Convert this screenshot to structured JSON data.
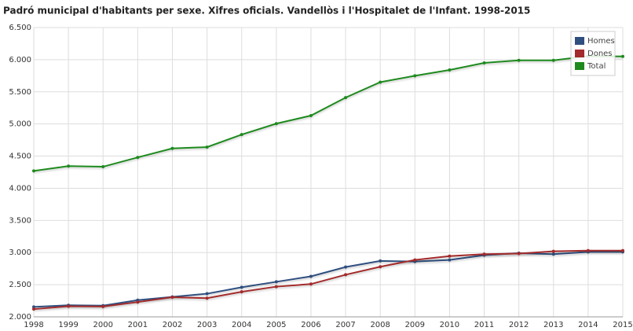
{
  "chart_data": {
    "type": "line",
    "title": "Padró municipal d'habitants per sexe. Xifres oficials. Vandellòs i l'Hospitalet de l'Infant. 1998-2015",
    "x": [
      1998,
      1999,
      2000,
      2001,
      2002,
      2003,
      2004,
      2005,
      2006,
      2007,
      2008,
      2009,
      2010,
      2011,
      2012,
      2013,
      2014,
      2015
    ],
    "xlim": [
      1998,
      2015
    ],
    "xticks": [
      1998,
      1999,
      2000,
      2001,
      2002,
      2003,
      2004,
      2005,
      2006,
      2007,
      2008,
      2009,
      2010,
      2011,
      2012,
      2013,
      2014,
      2015
    ],
    "ylim": [
      2000,
      6500
    ],
    "yticks": [
      {
        "value": 2000,
        "label": "2.000"
      },
      {
        "value": 2500,
        "label": "2.500"
      },
      {
        "value": 3000,
        "label": "3.000"
      },
      {
        "value": 3500,
        "label": "3.500"
      },
      {
        "value": 4000,
        "label": "4.000"
      },
      {
        "value": 4500,
        "label": "4.500"
      },
      {
        "value": 5000,
        "label": "5.000"
      },
      {
        "value": 5500,
        "label": "5.500"
      },
      {
        "value": 6000,
        "label": "6.000"
      },
      {
        "value": 6500,
        "label": "6.500"
      }
    ],
    "grid": true,
    "legend": "top-right",
    "series": [
      {
        "name": "Homes",
        "color": "#2f4f7f",
        "values": [
          2155,
          2180,
          2175,
          2260,
          2310,
          2360,
          2460,
          2545,
          2630,
          2775,
          2870,
          2860,
          2885,
          2960,
          2990,
          2975,
          3010,
          3010
        ]
      },
      {
        "name": "Dones",
        "color": "#a32b2b",
        "values": [
          2120,
          2165,
          2160,
          2230,
          2305,
          2290,
          2390,
          2470,
          2510,
          2655,
          2780,
          2885,
          2945,
          2975,
          2985,
          3020,
          3030,
          3030
        ]
      },
      {
        "name": "Total",
        "color": "#1e8a1e",
        "values": [
          4270,
          4345,
          4335,
          4480,
          4620,
          4640,
          4835,
          5005,
          5130,
          5410,
          5650,
          5750,
          5840,
          5950,
          5990,
          5990,
          6055,
          6050
        ]
      }
    ]
  }
}
